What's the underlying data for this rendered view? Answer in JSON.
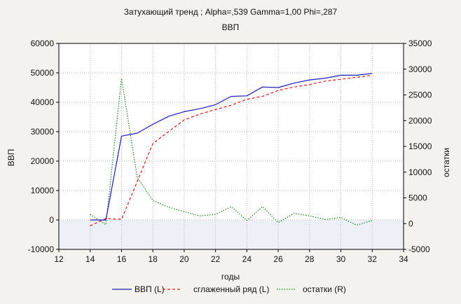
{
  "chart_data": {
    "type": "line",
    "title": "Затухающий тренд ; Alpha=,539 Gamma=1,00 Phi=,287",
    "subtitle": "ВВП",
    "xlabel": "годы",
    "ylabel_left": "ВВП",
    "ylabel_right": "остатки",
    "xlim": [
      12,
      34
    ],
    "ylim_left": [
      -10000,
      60000
    ],
    "ylim_right": [
      -5000,
      35000
    ],
    "x_ticks": [
      "12",
      "14",
      "16",
      "18",
      "20",
      "22",
      "24",
      "26",
      "28",
      "30",
      "32",
      "34"
    ],
    "y_left_ticks": [
      "-10000",
      "0",
      "10000",
      "20000",
      "30000",
      "40000",
      "50000",
      "60000"
    ],
    "y_right_ticks": [
      "-5000",
      "0",
      "5000",
      "10000",
      "15000",
      "20000",
      "25000",
      "30000",
      "35000"
    ],
    "grid": true,
    "legend_position": "bottom",
    "x": [
      14,
      15,
      16,
      17,
      18,
      19,
      20,
      21,
      22,
      23,
      24,
      25,
      26,
      27,
      28,
      29,
      30,
      31,
      32
    ],
    "series": [
      {
        "name": "ВВП (L)",
        "axis": "left",
        "style": "solid",
        "color": "#1a1ab4",
        "values": [
          0,
          0,
          28500,
          29500,
          32500,
          35200,
          36800,
          37800,
          39200,
          42000,
          42200,
          45200,
          45000,
          46500,
          47600,
          48200,
          49200,
          49200,
          49800
        ]
      },
      {
        "name": "сглаженный ряд (L)",
        "axis": "left",
        "style": "dashed",
        "color": "#e01818",
        "values": [
          -2000,
          500,
          200,
          13000,
          26000,
          30000,
          34000,
          36000,
          37500,
          39000,
          41000,
          42000,
          44000,
          45200,
          46000,
          47200,
          47800,
          48500,
          49200
        ]
      },
      {
        "name": "остатки (R)",
        "axis": "right",
        "style": "dotted",
        "color": "#1a8a1a",
        "values": [
          1800,
          -200,
          28200,
          9000,
          4500,
          3200,
          2300,
          1500,
          1800,
          3300,
          600,
          3300,
          200,
          2000,
          1500,
          800,
          1200,
          -300,
          600
        ]
      }
    ]
  },
  "band_color": "#eef0f8"
}
